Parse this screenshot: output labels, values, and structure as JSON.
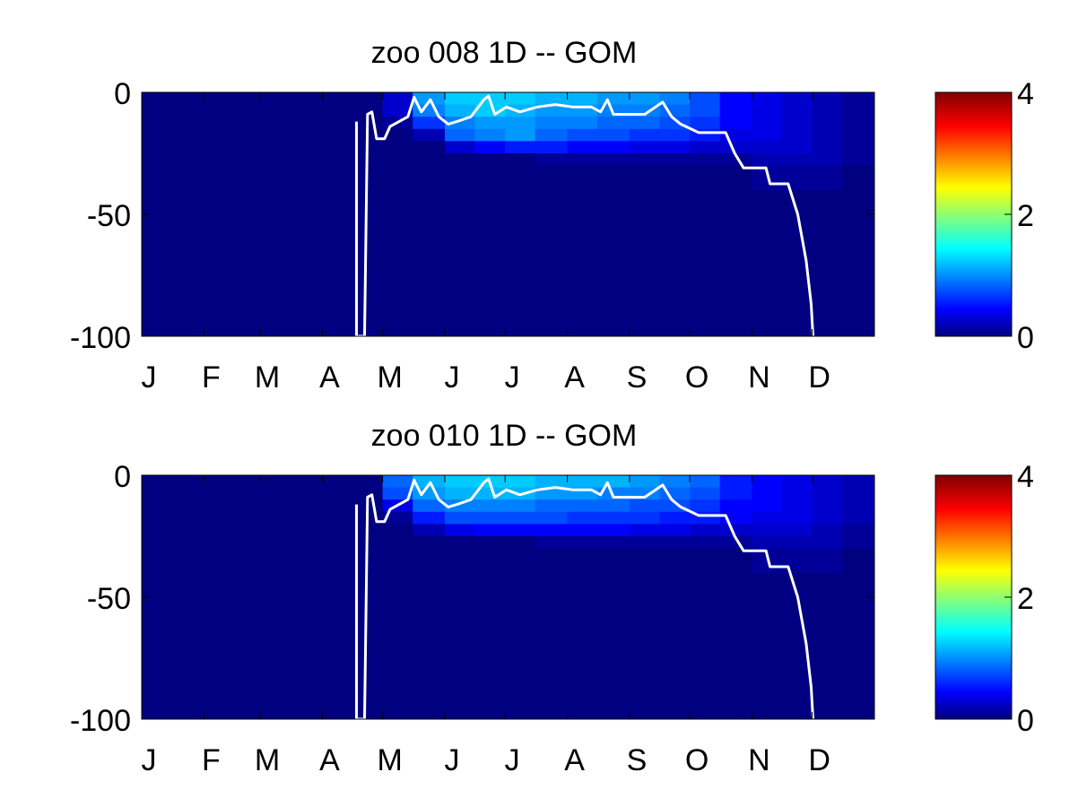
{
  "chart_data": [
    {
      "type": "heatmap",
      "title": "zoo  008 1D   -- GOM",
      "xlim": [
        1,
        366
      ],
      "ylim": [
        -100,
        0
      ],
      "xticks": [
        {
          "value": 1,
          "label": "J"
        },
        {
          "value": 32,
          "label": "F"
        },
        {
          "value": 60,
          "label": "M"
        },
        {
          "value": 91,
          "label": "A"
        },
        {
          "value": 121,
          "label": "M"
        },
        {
          "value": 152,
          "label": "J"
        },
        {
          "value": 182,
          "label": "J"
        },
        {
          "value": 213,
          "label": "A"
        },
        {
          "value": 244,
          "label": "S"
        },
        {
          "value": 274,
          "label": "O"
        },
        {
          "value": 305,
          "label": "N"
        },
        {
          "value": 335,
          "label": "D"
        }
      ],
      "yticks": [
        -100,
        -50,
        0
      ],
      "clim": [
        0,
        4
      ],
      "cticks": [
        0,
        2,
        4
      ],
      "colormap": "jet",
      "x_edges": [
        1,
        16,
        32,
        47,
        60,
        76,
        91,
        106,
        121,
        136,
        152,
        167,
        182,
        197,
        213,
        228,
        244,
        259,
        274,
        289,
        305,
        320,
        335,
        350,
        366
      ],
      "y_edges": [
        0,
        -5,
        -10,
        -15,
        -20,
        -25,
        -30,
        -40,
        -100
      ],
      "z": [
        [
          0,
          0,
          0,
          0,
          0,
          0,
          0,
          0,
          0.3,
          1.1,
          1.3,
          1.3,
          1.3,
          1.2,
          1.2,
          1.1,
          1.1,
          1.0,
          0.8,
          0.5,
          0.4,
          0.3,
          0.2,
          0.1
        ],
        [
          0,
          0,
          0,
          0,
          0,
          0,
          0,
          0,
          0.3,
          1.0,
          1.2,
          1.3,
          1.2,
          1.1,
          1.1,
          1.0,
          1.0,
          0.9,
          0.8,
          0.5,
          0.4,
          0.3,
          0.2,
          0.1
        ],
        [
          0,
          0,
          0,
          0,
          0,
          0,
          0,
          0,
          0.1,
          0.7,
          1.0,
          1.1,
          1.1,
          1.0,
          1.0,
          0.9,
          0.9,
          0.8,
          0.7,
          0.5,
          0.4,
          0.3,
          0.2,
          0.1
        ],
        [
          0,
          0,
          0,
          0,
          0,
          0,
          0,
          0,
          0,
          0.2,
          0.9,
          1.0,
          1.1,
          0.9,
          0.8,
          0.8,
          0.7,
          0.7,
          0.6,
          0.4,
          0.4,
          0.3,
          0.2,
          0.1
        ],
        [
          0,
          0,
          0,
          0,
          0,
          0,
          0,
          0,
          0,
          0,
          0.3,
          0.5,
          0.6,
          0.6,
          0.5,
          0.5,
          0.4,
          0.4,
          0.3,
          0.3,
          0.3,
          0.3,
          0.2,
          0.1
        ],
        [
          0,
          0,
          0,
          0,
          0,
          0,
          0,
          0,
          0,
          0,
          0,
          0,
          0,
          0.1,
          0.1,
          0.1,
          0.1,
          0.1,
          0.1,
          0.1,
          0.2,
          0.2,
          0.2,
          0.1
        ],
        [
          0,
          0,
          0,
          0,
          0,
          0,
          0,
          0,
          0,
          0,
          0,
          0,
          0,
          0,
          0,
          0,
          0,
          0,
          0,
          0,
          0.1,
          0.1,
          0.1,
          0
        ],
        [
          0,
          0,
          0,
          0,
          0,
          0,
          0,
          0,
          0,
          0,
          0,
          0,
          0,
          0,
          0,
          0,
          0,
          0,
          0,
          0,
          0,
          0,
          0,
          0
        ]
      ],
      "line": {
        "color": "#ffffff",
        "x": [
          108,
          108,
          112,
          113.5,
          115.7,
          118,
          122,
          124.7,
          133.6,
          136.7,
          140.3,
          144.8,
          149,
          153.7,
          158,
          165,
          171.5,
          173.8,
          176.9,
          182.7,
          189.4,
          198,
          207,
          216,
          225,
          229.6,
          233,
          236,
          242.7,
          251.6,
          260.5,
          265,
          269.5,
          278.5,
          291.9,
          296.4,
          300.8,
          312,
          314,
          323,
          327.8,
          332,
          334.5,
          335.4
        ],
        "y": [
          -12,
          -100,
          -100,
          -9,
          -8,
          -19,
          -19,
          -14,
          -10,
          -2,
          -8,
          -3,
          -10,
          -13,
          -12,
          -10,
          -3,
          -1.5,
          -9,
          -6,
          -8,
          -6,
          -5,
          -6,
          -6,
          -8,
          -3,
          -9,
          -9,
          -9,
          -4,
          -10,
          -13,
          -16.5,
          -16.5,
          -25,
          -31,
          -31,
          -37.5,
          -37.5,
          -50,
          -69,
          -87,
          -100
        ]
      }
    },
    {
      "type": "heatmap",
      "title": "zoo  010 1D   -- GOM",
      "xlim": [
        1,
        366
      ],
      "ylim": [
        -100,
        0
      ],
      "xticks": [
        {
          "value": 1,
          "label": "J"
        },
        {
          "value": 32,
          "label": "F"
        },
        {
          "value": 60,
          "label": "M"
        },
        {
          "value": 91,
          "label": "A"
        },
        {
          "value": 121,
          "label": "M"
        },
        {
          "value": 152,
          "label": "J"
        },
        {
          "value": 182,
          "label": "J"
        },
        {
          "value": 213,
          "label": "A"
        },
        {
          "value": 244,
          "label": "S"
        },
        {
          "value": 274,
          "label": "O"
        },
        {
          "value": 305,
          "label": "N"
        },
        {
          "value": 335,
          "label": "D"
        }
      ],
      "yticks": [
        -100,
        -50,
        0
      ],
      "clim": [
        0,
        4
      ],
      "cticks": [
        0,
        2,
        4
      ],
      "colormap": "jet",
      "x_edges": [
        1,
        16,
        32,
        47,
        60,
        76,
        91,
        106,
        121,
        136,
        152,
        167,
        182,
        197,
        213,
        228,
        244,
        259,
        274,
        289,
        305,
        320,
        335,
        350,
        366
      ],
      "y_edges": [
        0,
        -5,
        -10,
        -15,
        -20,
        -25,
        -30,
        -40,
        -100
      ],
      "z": [
        [
          0,
          0,
          0,
          0,
          0,
          0,
          0,
          0,
          0.9,
          1.2,
          1.3,
          1.3,
          1.3,
          1.2,
          1.2,
          1.2,
          1.1,
          1.0,
          0.9,
          0.6,
          0.5,
          0.4,
          0.3,
          0.2
        ],
        [
          0,
          0,
          0,
          0,
          0,
          0,
          0,
          0,
          0.8,
          1.1,
          1.2,
          1.2,
          1.2,
          1.1,
          1.1,
          1.0,
          1.0,
          0.9,
          0.8,
          0.6,
          0.5,
          0.4,
          0.3,
          0.2
        ],
        [
          0,
          0,
          0,
          0,
          0,
          0,
          0,
          0,
          0.4,
          0.9,
          1.0,
          1.0,
          1.0,
          0.9,
          0.9,
          0.9,
          0.8,
          0.8,
          0.7,
          0.5,
          0.5,
          0.4,
          0.3,
          0.2
        ],
        [
          0,
          0,
          0,
          0,
          0,
          0,
          0,
          0,
          0.1,
          0.6,
          0.8,
          0.8,
          0.8,
          0.8,
          0.7,
          0.7,
          0.7,
          0.6,
          0.6,
          0.5,
          0.4,
          0.4,
          0.3,
          0.2
        ],
        [
          0,
          0,
          0,
          0,
          0,
          0,
          0,
          0,
          0,
          0.2,
          0.4,
          0.5,
          0.5,
          0.5,
          0.5,
          0.5,
          0.4,
          0.4,
          0.3,
          0.3,
          0.3,
          0.3,
          0.2,
          0.1
        ],
        [
          0,
          0,
          0,
          0,
          0,
          0,
          0,
          0,
          0,
          0,
          0,
          0,
          0,
          0.1,
          0.1,
          0.1,
          0.1,
          0.1,
          0.1,
          0.1,
          0.2,
          0.2,
          0.2,
          0.1
        ],
        [
          0,
          0,
          0,
          0,
          0,
          0,
          0,
          0,
          0,
          0,
          0,
          0,
          0,
          0,
          0,
          0,
          0,
          0,
          0,
          0,
          0.1,
          0.1,
          0.1,
          0
        ],
        [
          0,
          0,
          0,
          0,
          0,
          0,
          0,
          0,
          0,
          0,
          0,
          0,
          0,
          0,
          0,
          0,
          0,
          0,
          0,
          0,
          0,
          0,
          0,
          0
        ]
      ],
      "line": {
        "color": "#ffffff",
        "x": [
          108,
          108,
          112,
          113.5,
          115.7,
          118,
          122,
          124.7,
          133.6,
          136.7,
          140.3,
          144.8,
          149,
          153.7,
          158,
          165,
          171.5,
          173.8,
          176.9,
          182.7,
          189.4,
          198,
          207,
          216,
          225,
          229.6,
          233,
          236,
          242.7,
          251.6,
          260.5,
          265,
          269.5,
          278.5,
          291.9,
          296.4,
          300.8,
          312,
          314,
          323,
          327.8,
          332,
          334.5,
          335.4
        ],
        "y": [
          -12,
          -100,
          -100,
          -9,
          -8,
          -19,
          -19,
          -14,
          -10,
          -2,
          -8,
          -3,
          -10,
          -13,
          -12,
          -10,
          -3,
          -1.5,
          -9,
          -6,
          -8,
          -6,
          -5,
          -6,
          -6,
          -8,
          -3,
          -9,
          -9,
          -9,
          -4,
          -10,
          -13,
          -16.5,
          -16.5,
          -25,
          -31,
          -31,
          -37.5,
          -37.5,
          -50,
          -69,
          -87,
          -100
        ]
      }
    }
  ]
}
